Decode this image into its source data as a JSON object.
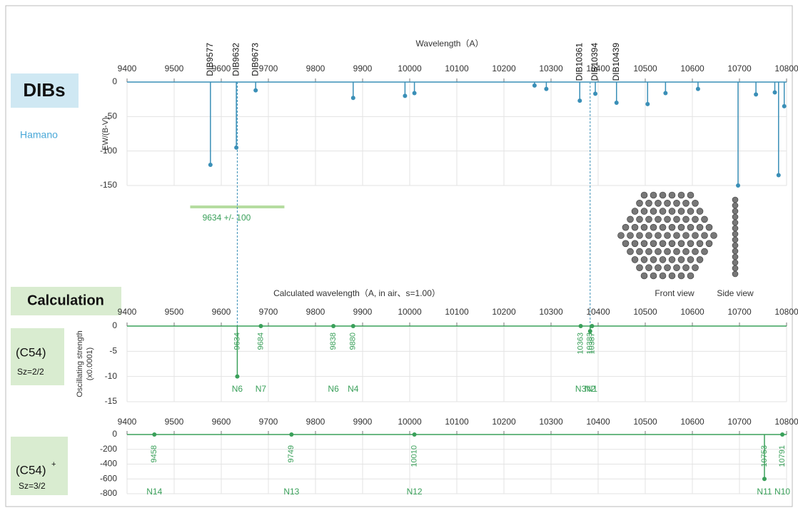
{
  "chart_data": [
    {
      "type": "stem",
      "title": "Wavelength（A）",
      "ylabel": [
        "EW/(B-V)"
      ],
      "badge": "DIBs",
      "source": "Hamano",
      "color": "#3a8fb7",
      "grid": true,
      "xlim": [
        9400,
        10800
      ],
      "xticks": [
        9400,
        9500,
        9600,
        9700,
        9800,
        9900,
        10000,
        10100,
        10200,
        10300,
        10400,
        10500,
        10600,
        10700,
        10800
      ],
      "ylim": [
        -150,
        0
      ],
      "yticks": [
        0,
        -50,
        -100,
        -150
      ],
      "x": [
        9577,
        9632,
        9673,
        9880,
        9990,
        10010,
        10265,
        10290,
        10361,
        10394,
        10439,
        10505,
        10543,
        10612,
        10697,
        10735,
        10775,
        10783,
        10795
      ],
      "values": [
        -120,
        -95,
        -12,
        -23,
        -20,
        -16,
        -5,
        -10,
        -27,
        -17,
        -30,
        -32,
        -16,
        -10,
        -150,
        -18,
        -15,
        -135,
        -35
      ],
      "labels": [
        "DIB9577",
        "DIB9632",
        "DIB9673",
        null,
        null,
        null,
        null,
        null,
        "DIB10361",
        "DIB10394",
        "DIB10439",
        null,
        null,
        null,
        null,
        null,
        null,
        null,
        null
      ],
      "band": {
        "center": 9634,
        "halfwidth": 100,
        "label": "9634 +/- 100"
      },
      "guides": [
        9634,
        10383
      ]
    },
    {
      "type": "stem",
      "title": "Calculated wavelength（A, in air、s=1.00）",
      "ylabel": [
        "Oscillating strength",
        "(x0.0001)"
      ],
      "badge": "Calculation",
      "molecule": "(C54)",
      "spin": "Sz=2/2",
      "color": "#3aa05a",
      "grid": true,
      "xlim": [
        9400,
        10800
      ],
      "xticks": [
        9400,
        9500,
        9600,
        9700,
        9800,
        9900,
        10000,
        10100,
        10200,
        10300,
        10400,
        10500,
        10600,
        10700,
        10800
      ],
      "ylim": [
        -15,
        0
      ],
      "yticks": [
        0,
        -5,
        -10,
        -15
      ],
      "x": [
        9684,
        9634,
        9838,
        9880,
        10363,
        10383,
        10387
      ],
      "values": [
        0,
        -10,
        0,
        0,
        0,
        -1,
        0
      ],
      "modes": [
        "N7",
        "N6",
        "N6",
        "N4",
        "N3",
        "N2",
        "N1"
      ]
    },
    {
      "type": "stem",
      "molecule": "(C54)",
      "charge": "+",
      "spin": "Sz=3/2",
      "color": "#3aa05a",
      "grid": true,
      "xlim": [
        9400,
        10800
      ],
      "xticks": [
        9400,
        9500,
        9600,
        9700,
        9800,
        9900,
        10000,
        10100,
        10200,
        10300,
        10400,
        10500,
        10600,
        10700,
        10800
      ],
      "ylim": [
        -800,
        0
      ],
      "yticks": [
        0,
        -200,
        -400,
        -600,
        -800
      ],
      "x": [
        9458,
        9749,
        10010,
        10753,
        10791
      ],
      "values": [
        0,
        0,
        0,
        -600,
        0
      ],
      "modes": [
        "N14",
        "N13",
        "N12",
        "N11",
        "N10"
      ]
    }
  ],
  "views": [
    "Front view",
    "Side view"
  ]
}
